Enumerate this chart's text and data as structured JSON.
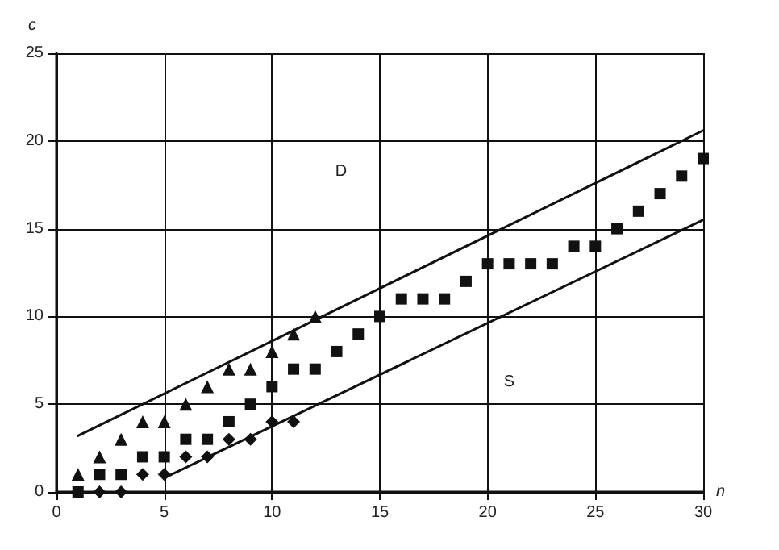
{
  "chart_data": {
    "type": "scatter",
    "xlabel": "n",
    "ylabel": "c",
    "xlim": [
      0,
      30
    ],
    "ylim": [
      0,
      25
    ],
    "xticks": [
      0,
      5,
      10,
      15,
      20,
      25,
      30
    ],
    "yticks": [
      0,
      5,
      10,
      15,
      20,
      25
    ],
    "grid": true,
    "annotations": [
      "D",
      "S"
    ],
    "series": [
      {
        "marker": "triangle",
        "color": "#111111",
        "x": [
          1,
          2,
          3,
          4,
          5,
          6,
          7,
          8,
          9,
          10,
          11,
          12
        ],
        "values": [
          1,
          2,
          3,
          4,
          4,
          5,
          6,
          7,
          7,
          8,
          9,
          10
        ]
      },
      {
        "marker": "square",
        "color": "#111111",
        "x": [
          1,
          2,
          3,
          4,
          5,
          6,
          7,
          8,
          9,
          10,
          11,
          12,
          13,
          14,
          15,
          16,
          17,
          18,
          19,
          20,
          21,
          22,
          23,
          24,
          25,
          26,
          27,
          28,
          29,
          30
        ],
        "values": [
          0,
          1,
          1,
          2,
          2,
          3,
          3,
          4,
          5,
          6,
          7,
          7,
          8,
          9,
          10,
          11,
          11,
          11,
          12,
          13,
          13,
          13,
          13,
          14,
          14,
          15,
          16,
          17,
          18,
          19
        ]
      },
      {
        "marker": "diamond",
        "color": "#111111",
        "x": [
          2,
          3,
          4,
          5,
          6,
          7,
          8,
          9,
          10,
          11
        ],
        "values": [
          0,
          0,
          1,
          1,
          2,
          2,
          3,
          3,
          4,
          4
        ]
      },
      {
        "type": "line",
        "marker": "none",
        "line_style": "solid",
        "color": "#111111",
        "x": [
          1,
          30
        ],
        "values": [
          3.2,
          20.6
        ]
      },
      {
        "type": "line",
        "marker": "none",
        "line_style": "solid",
        "color": "#111111",
        "x": [
          5,
          30
        ],
        "values": [
          0.8,
          15.5
        ]
      }
    ]
  }
}
